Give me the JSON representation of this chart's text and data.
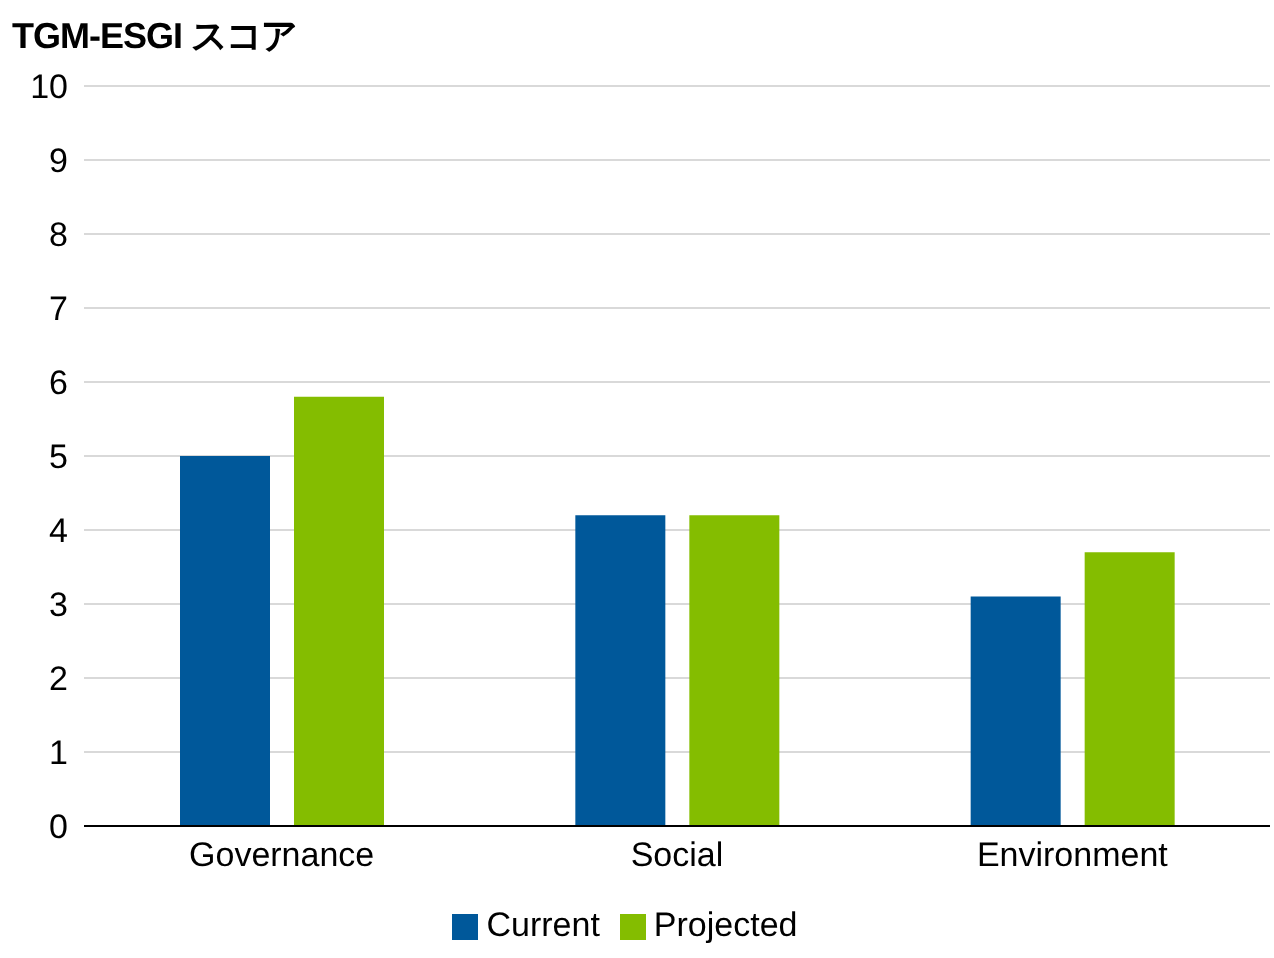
{
  "chart_data": {
    "type": "bar",
    "ylabel": "TGM-ESGI スコア",
    "categories": [
      "Governance",
      "Social",
      "Environment"
    ],
    "series": [
      {
        "name": "Current",
        "color": "#00589a",
        "values": [
          5.0,
          4.2,
          3.1
        ]
      },
      {
        "name": "Projected",
        "color": "#84bd00",
        "values": [
          5.8,
          4.2,
          3.7
        ]
      }
    ],
    "ylim": [
      0,
      10
    ],
    "yticks": [
      0,
      1,
      2,
      3,
      4,
      5,
      6,
      7,
      8,
      9,
      10
    ],
    "grid": "y",
    "legend": "bottom"
  }
}
